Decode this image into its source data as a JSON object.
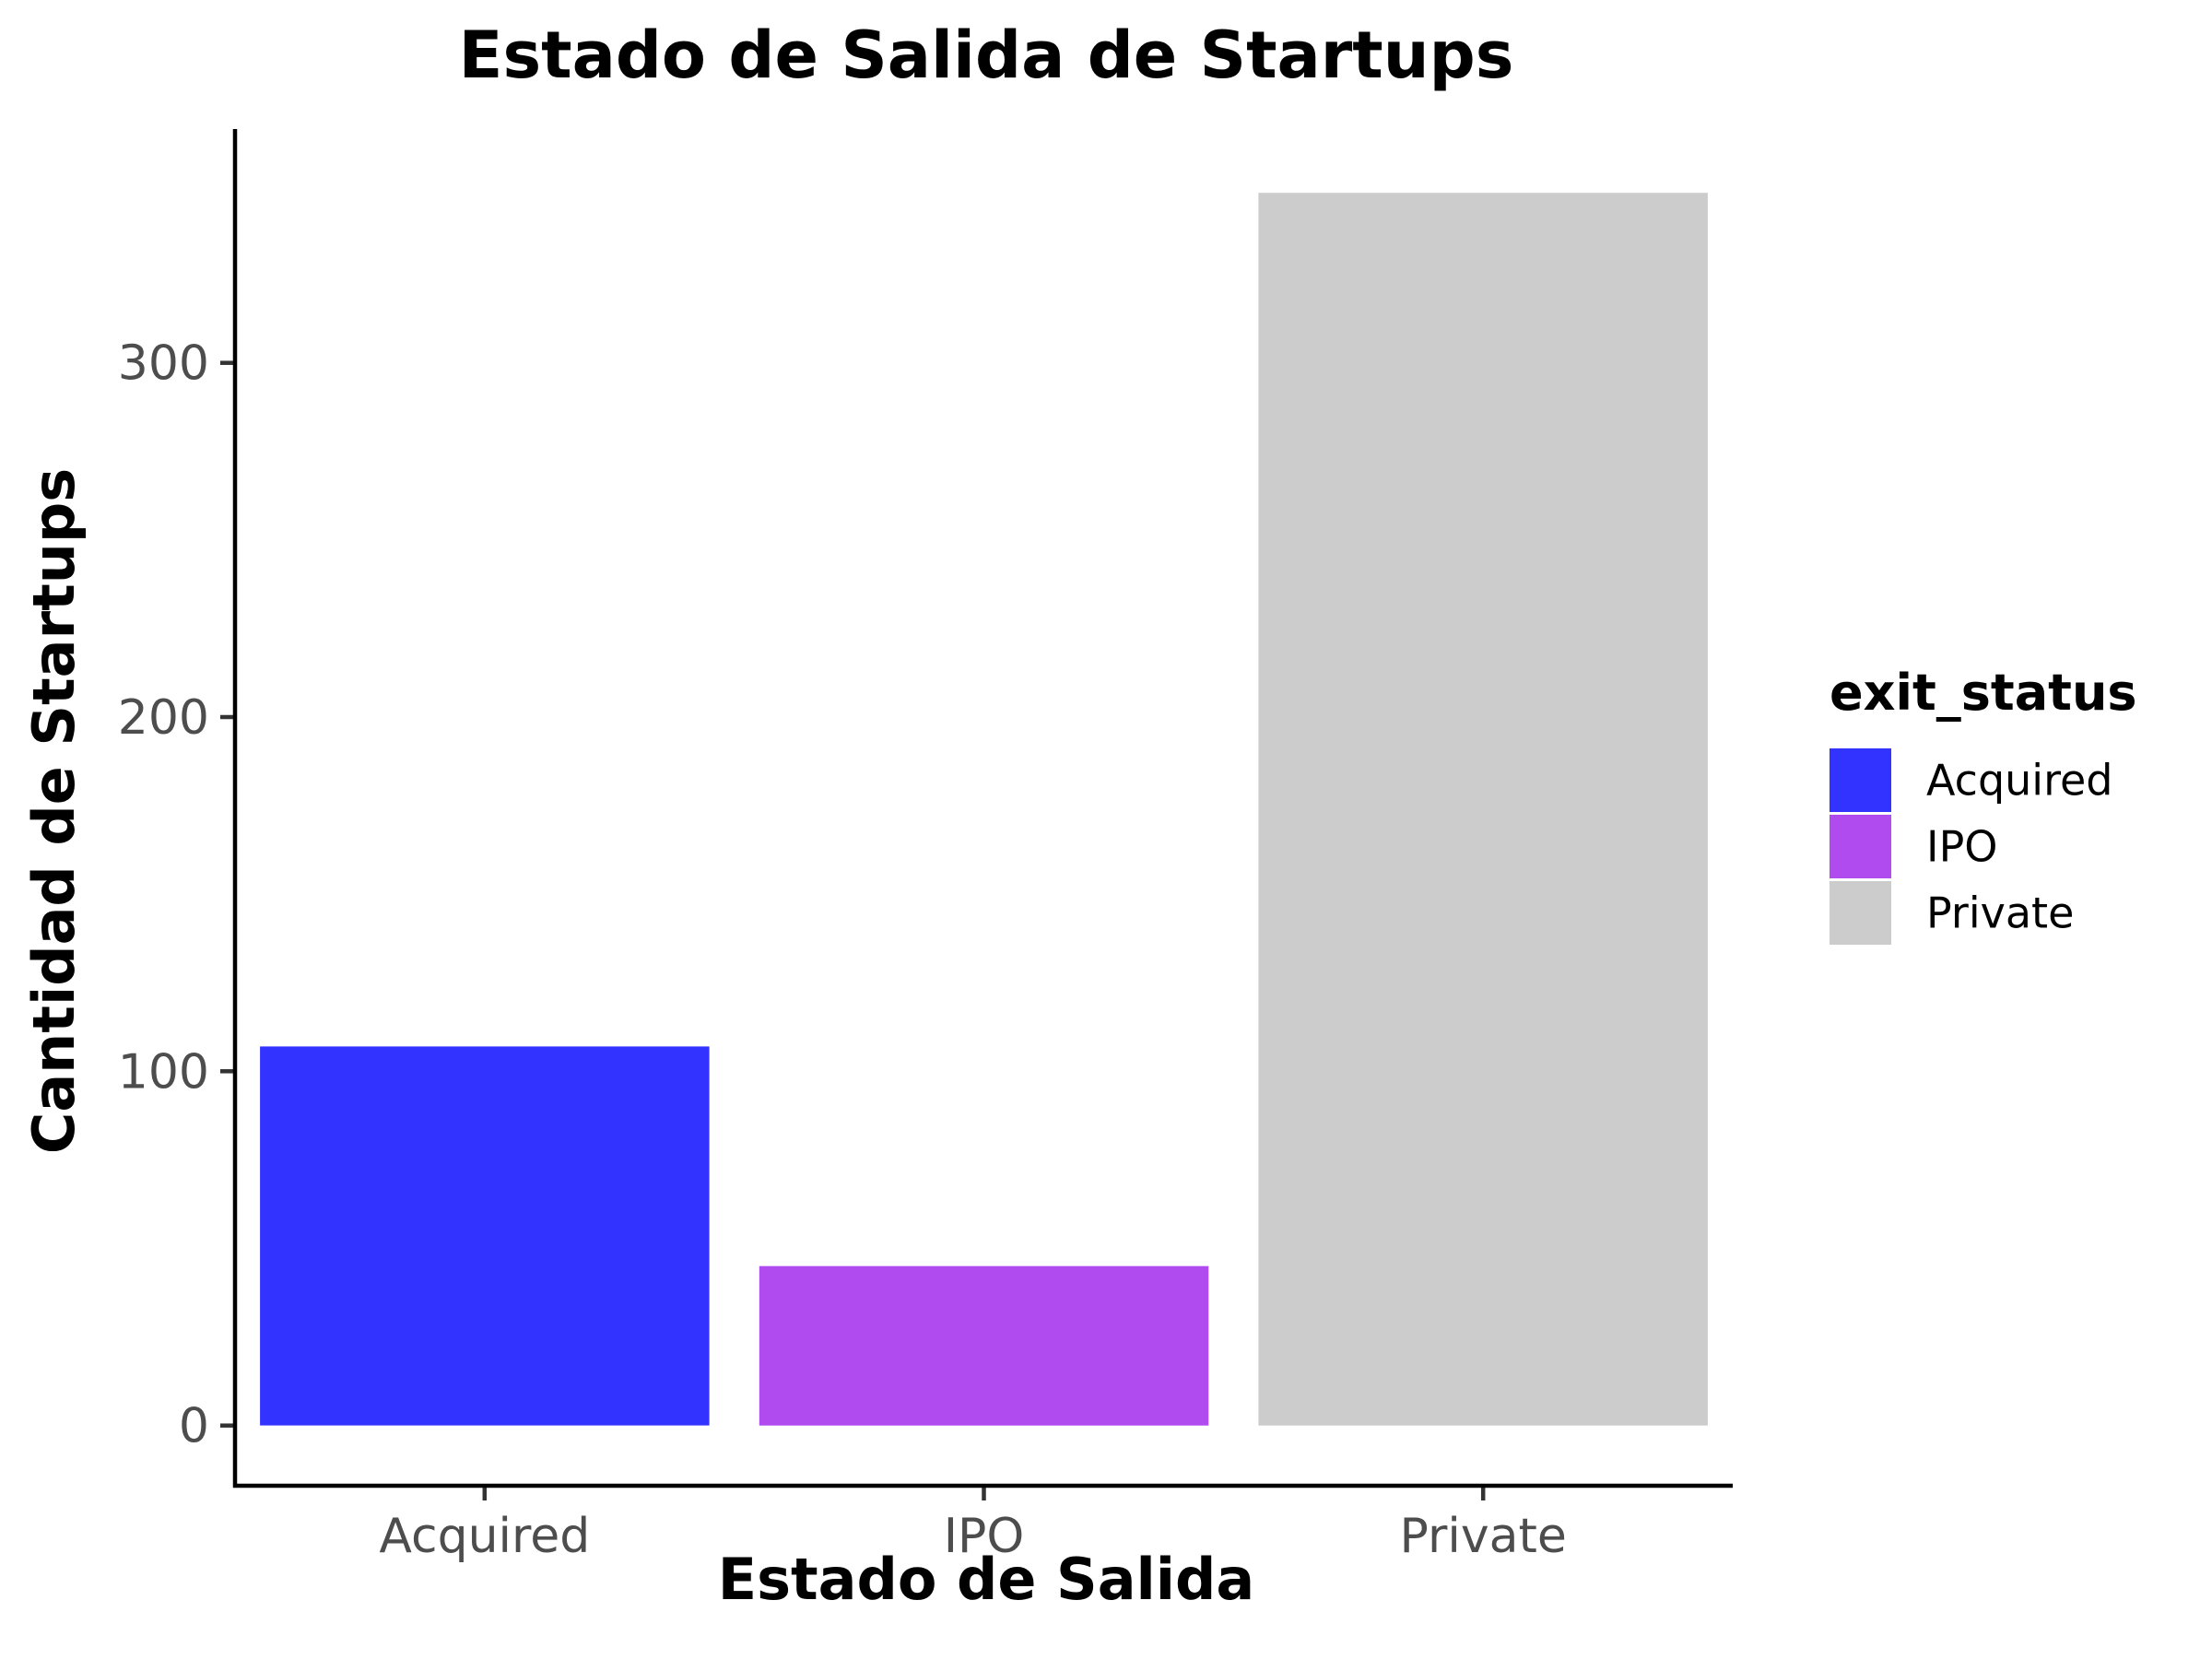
{
  "chart_data": {
    "type": "bar",
    "title": "Estado de Salida de Startups",
    "xlabel": "Estado de Salida",
    "ylabel": "Cantidad de Startups",
    "categories": [
      "Acquired",
      "IPO",
      "Private"
    ],
    "values": [
      107,
      45,
      348
    ],
    "colors": [
      "#3333ff",
      "#b04bf0",
      "#cccccc"
    ],
    "ylim": [
      -17,
      366
    ],
    "yticks": [
      0,
      100,
      200,
      300
    ],
    "ytick_labels": [
      "0",
      "100",
      "200",
      "300"
    ],
    "grid": false,
    "legend": {
      "title": "exit_status",
      "placement": "right",
      "entries": [
        "Acquired",
        "IPO",
        "Private"
      ]
    }
  }
}
